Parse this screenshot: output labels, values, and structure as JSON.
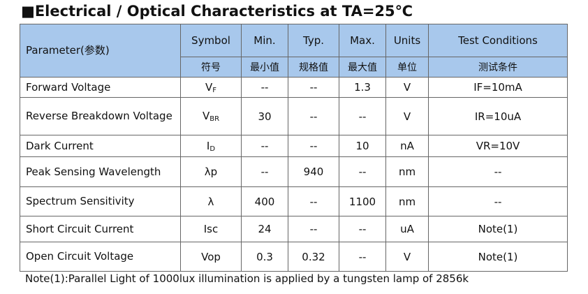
{
  "header": {
    "title": "■Electrical / Optical Characteristics at TA=25℃"
  },
  "table": {
    "head": [
      "Parameter(参数)",
      "Symbol",
      "Min.",
      "Typ.",
      "Max.",
      "Units",
      "Test Conditions"
    ],
    "head_cn": [
      "符号",
      "最小值",
      "规格值",
      "最大值",
      "单位",
      "测试条件"
    ],
    "rows": [
      [
        "Forward Voltage",
        {
          "main": "V",
          "sub": "F"
        },
        "--",
        "--",
        "1.3",
        "V",
        "IF=10mA"
      ],
      [
        "Reverse Breakdown Voltage",
        {
          "main": "V",
          "sub": "BR"
        },
        "30",
        "--",
        "--",
        "V",
        "IR=10uA"
      ],
      [
        "Dark Current",
        {
          "main": "I",
          "sub": "D"
        },
        "--",
        "--",
        "10",
        "nA",
        "VR=10V"
      ],
      [
        "Peak Sensing Wavelength",
        {
          "main": "λp"
        },
        "--",
        "940",
        "--",
        "nm",
        "--"
      ],
      [
        "Spectrum Sensitivity",
        {
          "main": "λ"
        },
        "400",
        "--",
        "1100",
        "nm",
        "--"
      ],
      [
        "Short Circuit Current",
        {
          "main": "Isc"
        },
        "24",
        "--",
        "--",
        "uA",
        "Note(1)"
      ],
      [
        "Open Circuit Voltage",
        {
          "main": "Vop"
        },
        "0.3",
        "0.32",
        "--",
        "V",
        "Note(1)"
      ]
    ]
  },
  "note": "Note(1):Parallel Light of 1000lux illumination is applied by a tungsten lamp of 2856k"
}
